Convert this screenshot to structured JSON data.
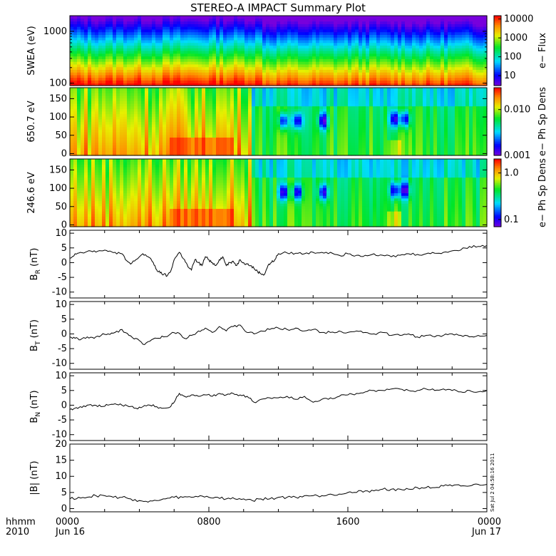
{
  "title": "STEREO-A IMPACT Summary Plot",
  "footer": {
    "hhmm": "hhmm",
    "year": "2010",
    "stamp": "Sat Jul  2 04:58:16 2011"
  },
  "x_axis": {
    "ticks": [
      {
        "hour": 0,
        "top": "0000",
        "bottom": "Jun 16"
      },
      {
        "hour": 8,
        "top": "0800",
        "bottom": ""
      },
      {
        "hour": 16,
        "top": "1600",
        "bottom": ""
      },
      {
        "hour": 24,
        "top": "0000",
        "bottom": "Jun 17"
      }
    ],
    "range_hours": [
      0,
      24
    ]
  },
  "chart_data": [
    {
      "type": "heatmap",
      "id": "swea",
      "ylabel": "SWEA (eV)",
      "yscale": "log",
      "ylim": [
        90,
        2000
      ],
      "yticks": [
        {
          "v": 100,
          "label": "100"
        },
        {
          "v": 1000,
          "label": "1000"
        }
      ],
      "colorbar": {
        "label": "e− Flux",
        "scale": "log",
        "range": [
          3,
          15000
        ],
        "ticks": [
          {
            "v": 10,
            "label": "10"
          },
          {
            "v": 100,
            "label": "100"
          },
          {
            "v": 1000,
            "label": "1000"
          },
          {
            "v": 10000,
            "label": "10000"
          }
        ]
      }
    },
    {
      "type": "heatmap",
      "id": "pad650",
      "ylabel": "650.7 eV",
      "ylim": [
        -5,
        180
      ],
      "yticks": [
        {
          "v": 0,
          "label": "0"
        },
        {
          "v": 50,
          "label": "50"
        },
        {
          "v": 100,
          "label": "100"
        },
        {
          "v": 150,
          "label": "150"
        }
      ],
      "colorbar": {
        "label": "e− Ph Sp Dens",
        "scale": "log",
        "range": [
          0.001,
          0.03
        ],
        "ticks": [
          {
            "v": 0.001,
            "label": "0.001"
          },
          {
            "v": 0.01,
            "label": "0.010"
          }
        ]
      },
      "depletions": [
        {
          "hour": 12.3,
          "pa": 90
        },
        {
          "hour": 13.1,
          "pa": 90
        },
        {
          "hour": 14.6,
          "pa": 90
        },
        {
          "hour": 18.7,
          "pa": 95
        },
        {
          "hour": 19.3,
          "pa": 95
        }
      ]
    },
    {
      "type": "heatmap",
      "id": "pad246",
      "ylabel": "246.6 eV",
      "ylim": [
        -5,
        180
      ],
      "yticks": [
        {
          "v": 0,
          "label": "0"
        },
        {
          "v": 50,
          "label": "50"
        },
        {
          "v": 100,
          "label": "100"
        },
        {
          "v": 150,
          "label": "150"
        }
      ],
      "colorbar": {
        "label": "e− Ph Sp Dens",
        "scale": "log",
        "range": [
          0.07,
          2
        ],
        "ticks": [
          {
            "v": 0.1,
            "label": "0.1"
          },
          {
            "v": 1.0,
            "label": "1.0"
          }
        ]
      },
      "depletions": [
        {
          "hour": 12.3,
          "pa": 90
        },
        {
          "hour": 13.1,
          "pa": 90
        },
        {
          "hour": 14.6,
          "pa": 90
        },
        {
          "hour": 18.7,
          "pa": 95
        },
        {
          "hour": 19.3,
          "pa": 95
        }
      ]
    },
    {
      "type": "line",
      "id": "br",
      "ylabel_main": "B",
      "ylabel_sub": "R",
      "ylabel_unit": "(nT)",
      "ylim": [
        -12,
        11
      ],
      "yticks": [
        {
          "v": -10,
          "label": "-10"
        },
        {
          "v": -5,
          "label": "-5"
        },
        {
          "v": 0,
          "label": "0"
        },
        {
          "v": 5,
          "label": "5"
        },
        {
          "v": 10,
          "label": "10"
        }
      ],
      "x": [
        0,
        0.3,
        0.6,
        1,
        1.4,
        1.8,
        2.2,
        2.6,
        3,
        3.2,
        3.5,
        3.8,
        4.2,
        4.5,
        4.8,
        5,
        5.2,
        5.4,
        5.6,
        5.8,
        6,
        6.3,
        6.6,
        6.8,
        7,
        7.2,
        7.4,
        7.6,
        7.8,
        8,
        8.2,
        8.4,
        8.6,
        8.8,
        9,
        9.2,
        9.4,
        9.6,
        9.8,
        10,
        10.2,
        10.4,
        10.6,
        10.8,
        11,
        11.2,
        11.4,
        11.6,
        11.8,
        12,
        12.5,
        13,
        13.5,
        14,
        14.5,
        15,
        15.5,
        16,
        16.5,
        17,
        17.5,
        18,
        18.5,
        19,
        19.5,
        20,
        20.5,
        21,
        21.5,
        22,
        22.5,
        23,
        23.5,
        24
      ],
      "y": [
        1.5,
        3,
        3.5,
        3.8,
        4,
        4,
        3.8,
        3.5,
        3,
        1,
        -0.5,
        1,
        3,
        2,
        0,
        -2.5,
        -3.5,
        -4,
        -4.5,
        -3,
        1,
        3.5,
        1,
        -1.5,
        -2.5,
        1,
        0,
        -1,
        2,
        1,
        0,
        -1,
        1,
        2,
        -1,
        0,
        0.5,
        -1,
        1,
        0,
        -0.5,
        -1,
        -2,
        -3,
        -3.8,
        -4,
        -1,
        0,
        1,
        3,
        3.3,
        3.2,
        3,
        3.5,
        3.5,
        3.5,
        2.5,
        3,
        2.5,
        2.5,
        3,
        2.5,
        2,
        2.5,
        3,
        2.8,
        3,
        3.2,
        3.5,
        4,
        4.3,
        5.5,
        5.5,
        5.8
      ]
    },
    {
      "type": "line",
      "id": "bt",
      "ylabel_main": "B",
      "ylabel_sub": "T",
      "ylabel_unit": "(nT)",
      "ylim": [
        -12,
        11
      ],
      "yticks": [
        {
          "v": -10,
          "label": "-10"
        },
        {
          "v": -5,
          "label": "-5"
        },
        {
          "v": 0,
          "label": "0"
        },
        {
          "v": 5,
          "label": "5"
        },
        {
          "v": 10,
          "label": "10"
        }
      ],
      "x": [
        0,
        0.3,
        0.6,
        1,
        1.4,
        1.8,
        2.2,
        2.6,
        3,
        3.4,
        3.8,
        4.2,
        4.6,
        5,
        5.4,
        5.8,
        6.2,
        6.6,
        7,
        7.4,
        7.8,
        8.2,
        8.6,
        9,
        9.4,
        9.8,
        10.2,
        10.6,
        11,
        11.5,
        12,
        12.5,
        13,
        13.5,
        14,
        14.5,
        15,
        15.5,
        16,
        16.5,
        17,
        17.5,
        18,
        18.5,
        19,
        19.5,
        20,
        20.5,
        21,
        21.5,
        22,
        22.5,
        23,
        23.5,
        24
      ],
      "y": [
        -1,
        -1.5,
        -2,
        -1,
        -1.5,
        -0.5,
        0,
        0.5,
        1.5,
        -0.5,
        -1.5,
        -3.5,
        -2.5,
        -1.5,
        -1,
        0,
        0.5,
        -1.5,
        -0.5,
        1,
        2,
        0.5,
        2.5,
        1,
        2.5,
        3,
        0.5,
        0,
        1,
        1.5,
        2,
        1.5,
        2,
        1,
        1.5,
        0.5,
        0.5,
        1,
        0.5,
        1,
        0.5,
        0,
        0.5,
        -0.5,
        -0.5,
        0,
        -1,
        -0.5,
        -1,
        -0.5,
        0,
        -0.5,
        -1,
        -0.5,
        -0.5
      ]
    },
    {
      "type": "line",
      "id": "bn",
      "ylabel_main": "B",
      "ylabel_sub": "N",
      "ylabel_unit": "(nT)",
      "ylim": [
        -12,
        11
      ],
      "yticks": [
        {
          "v": -10,
          "label": "-10"
        },
        {
          "v": -5,
          "label": "-5"
        },
        {
          "v": 0,
          "label": "0"
        },
        {
          "v": 5,
          "label": "5"
        },
        {
          "v": 10,
          "label": "10"
        }
      ],
      "x": [
        0,
        0.3,
        0.6,
        1,
        1.4,
        1.8,
        2.2,
        2.6,
        3,
        3.4,
        3.8,
        4.2,
        4.6,
        5,
        5.4,
        5.8,
        6,
        6.3,
        6.6,
        7,
        7.4,
        7.8,
        8.2,
        8.6,
        9,
        9.4,
        9.8,
        10.2,
        10.6,
        11,
        11.5,
        12,
        12.5,
        13,
        13.5,
        14,
        14.5,
        15,
        15.5,
        16,
        16.5,
        17,
        17.5,
        18,
        18.5,
        19,
        19.5,
        20,
        20.5,
        21,
        21.5,
        22,
        22.5,
        23,
        23.5,
        24
      ],
      "y": [
        -1.5,
        -1,
        -0.5,
        0,
        0,
        -0.5,
        0,
        0.5,
        0,
        -0.5,
        -1,
        -0.5,
        0,
        -0.5,
        -1,
        -0.5,
        1,
        4,
        3,
        3.5,
        3,
        3.5,
        3,
        4,
        3.5,
        4,
        3.5,
        3,
        1,
        2,
        2.5,
        2.5,
        3,
        2,
        3,
        1,
        2,
        2.5,
        3,
        3.5,
        4,
        4.5,
        5,
        5,
        5.5,
        5.5,
        5,
        5,
        5.5,
        5,
        5.5,
        5,
        4.5,
        5,
        4.5,
        5
      ]
    },
    {
      "type": "line",
      "id": "bmag",
      "ylabel_main": "|B|",
      "ylabel_sub": "",
      "ylabel_unit": "(nT)",
      "ylim": [
        -1,
        20
      ],
      "yticks": [
        {
          "v": 0,
          "label": "0"
        },
        {
          "v": 5,
          "label": "5"
        },
        {
          "v": 10,
          "label": "10"
        },
        {
          "v": 15,
          "label": "15"
        },
        {
          "v": 20,
          "label": "20"
        }
      ],
      "x": [
        0,
        0.5,
        1,
        1.5,
        2,
        2.5,
        3,
        3.5,
        4,
        4.5,
        5,
        5.5,
        6,
        6.5,
        7,
        7.5,
        8,
        8.5,
        9,
        9.5,
        10,
        10.5,
        11,
        11.5,
        12,
        12.5,
        13,
        13.5,
        14,
        14.5,
        15,
        15.5,
        16,
        16.5,
        17,
        17.5,
        18,
        18.5,
        19,
        19.5,
        20,
        20.5,
        21,
        21.5,
        22,
        22.5,
        23,
        23.5,
        24
      ],
      "y": [
        3,
        3.5,
        3.5,
        4,
        4,
        3.5,
        3.5,
        3,
        2.5,
        2,
        2.5,
        3,
        3.5,
        3.5,
        3.5,
        4,
        3.5,
        3.5,
        3,
        3,
        3,
        2.5,
        3,
        3,
        3.5,
        3.5,
        3.5,
        4,
        4,
        4,
        4.5,
        4.5,
        5,
        5,
        5.5,
        5.5,
        6,
        6,
        6,
        6,
        6.5,
        6.5,
        6.5,
        7,
        7,
        7,
        7,
        7.5,
        7.5
      ]
    }
  ]
}
